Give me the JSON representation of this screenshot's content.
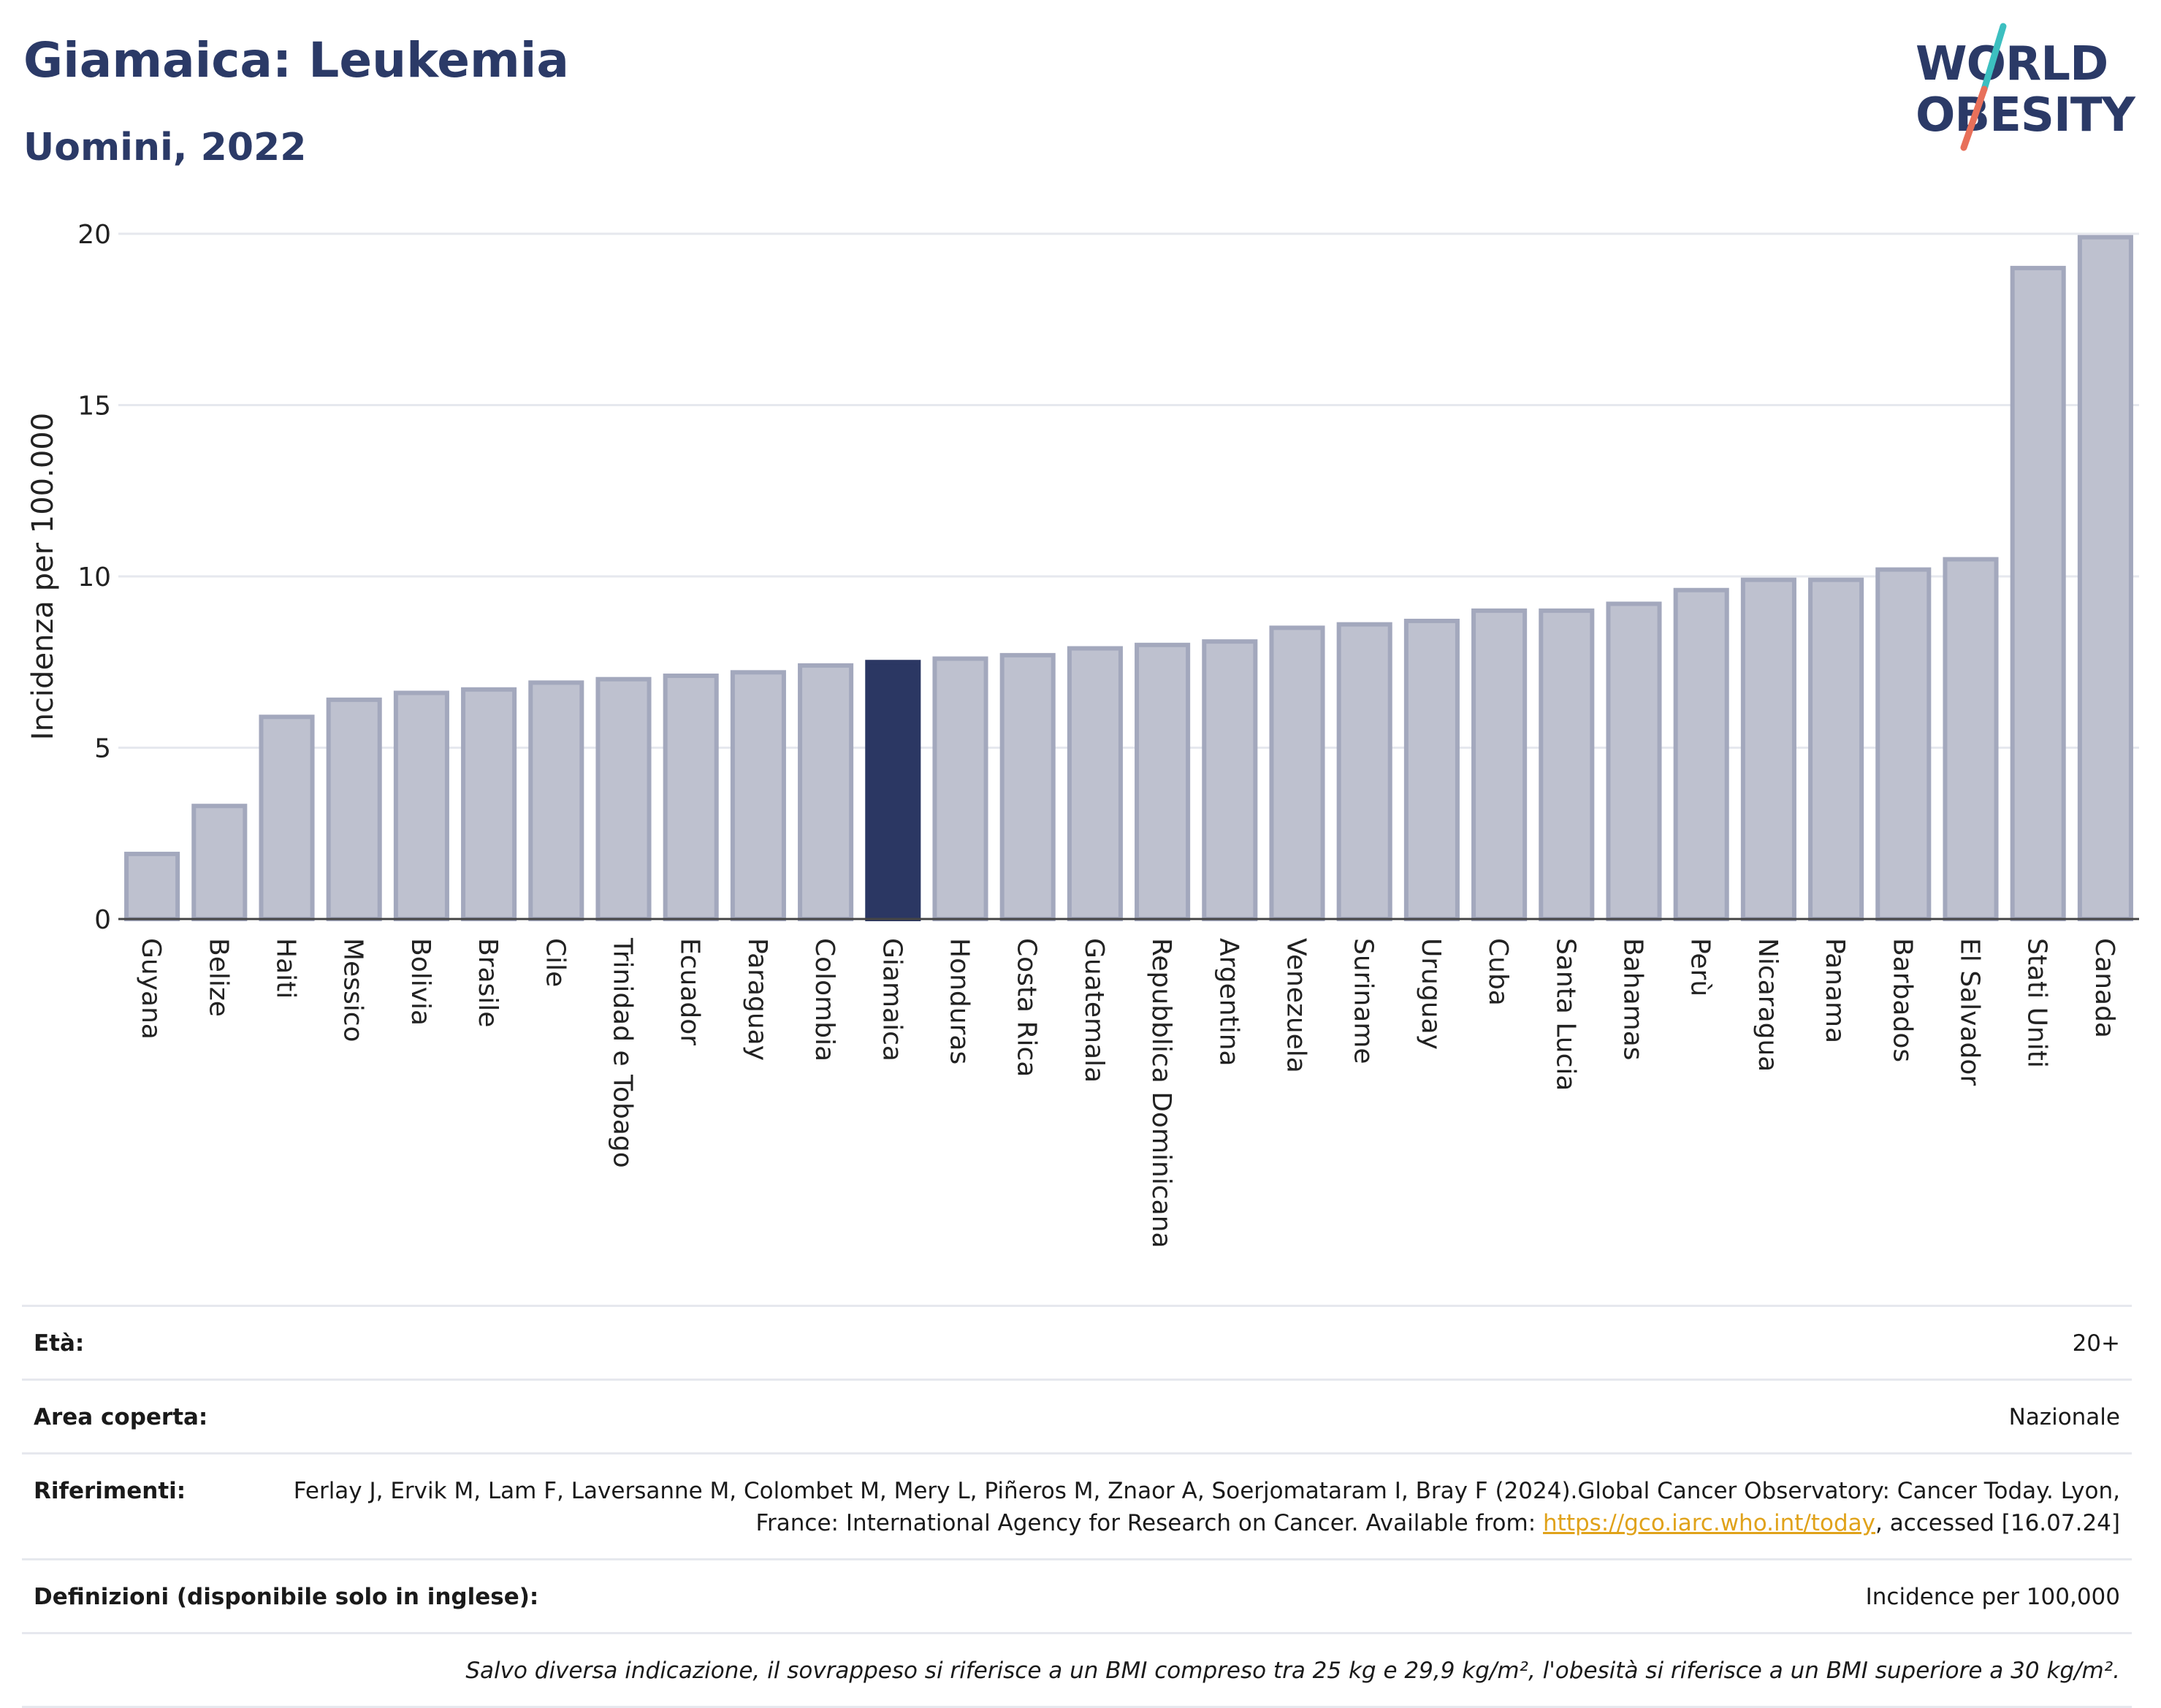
{
  "header": {
    "title": "Giamaica: Leukemia",
    "subtitle": "Uomini, 2022"
  },
  "logo": {
    "line1": "WORLD",
    "line2": "OBESITY",
    "slash_colors": [
      "#3cbfc0",
      "#e8705a"
    ],
    "text_color": "#2b3a67"
  },
  "chart_data": {
    "type": "bar",
    "title": "Giamaica: Leukemia",
    "subtitle": "Uomini, 2022",
    "xlabel": "",
    "ylabel": "Incidenza per 100.000",
    "ylim": [
      0,
      20
    ],
    "yticks": [
      0,
      5,
      10,
      15,
      20
    ],
    "grid": true,
    "highlight": "Giamaica",
    "colors": {
      "default": "#bec1cf",
      "default_border": "#a3a8bd",
      "highlight": "#2b3763"
    },
    "categories": [
      "Guyana",
      "Belize",
      "Haiti",
      "Messico",
      "Bolivia",
      "Brasile",
      "Cile",
      "Trinidad e Tobago",
      "Ecuador",
      "Paraguay",
      "Colombia",
      "Giamaica",
      "Honduras",
      "Costa Rica",
      "Guatemala",
      "Repubblica Dominicana",
      "Argentina",
      "Venezuela",
      "Suriname",
      "Uruguay",
      "Cuba",
      "Santa Lucia",
      "Bahamas",
      "Perù",
      "Nicaragua",
      "Panama",
      "Barbados",
      "El Salvador",
      "Stati Uniti",
      "Canada"
    ],
    "values": [
      1.9,
      3.3,
      5.9,
      6.4,
      6.6,
      6.7,
      6.9,
      7.0,
      7.1,
      7.2,
      7.4,
      7.5,
      7.6,
      7.7,
      7.9,
      8.0,
      8.1,
      8.5,
      8.6,
      8.7,
      9.0,
      9.0,
      9.2,
      9.6,
      9.9,
      9.9,
      10.2,
      10.5,
      19.0,
      19.9
    ]
  },
  "info": {
    "age_label": "Età:",
    "age_value": "20+",
    "area_label": "Area coperta:",
    "area_value": "Nazionale",
    "ref_label": "Riferimenti:",
    "ref_text_1": "Ferlay J, Ervik M, Lam F, Laversanne M, Colombet M, Mery L, Piñeros M, Znaor A, Soerjomataram I, Bray F (2024).Global Cancer Observatory: Cancer Today. Lyon, France: International Agency for Research on Cancer. Available from: ",
    "ref_link": "https://gco.iarc.who.int/today",
    "ref_text_2": ", accessed [16.07.24]",
    "def_label": "Definizioni (disponibile solo in inglese):",
    "def_value": "Incidence per 100,000",
    "note": "Salvo diversa indicazione, il sovrappeso si riferisce a un BMI compreso tra 25 kg e 29,9 kg/m², l'obesità si riferisce a un BMI superiore a 30 kg/m²."
  }
}
